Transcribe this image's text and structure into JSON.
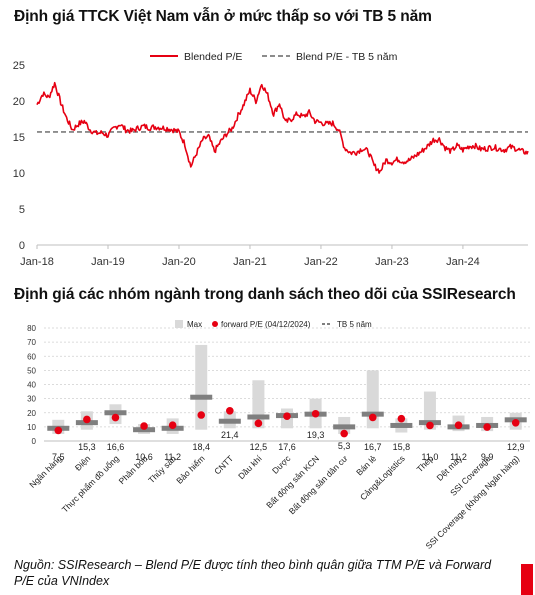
{
  "colors": {
    "accent": "#e60012",
    "avg_line": "#8c8c8c",
    "range_bar": "#d9d9d9",
    "tb_marker": "#7f7f7f"
  },
  "chart_data": [
    {
      "type": "line",
      "title": "Định giá TTCK Việt Nam vẫn ở mức thấp so với TB 5 năm",
      "ylim": [
        0,
        25
      ],
      "yticks": [
        "0",
        "5",
        "10",
        "15",
        "20",
        "25"
      ],
      "xlim": [
        "2018-01",
        "2024-12"
      ],
      "xticks": [
        "Jan-18",
        "Jan-19",
        "Jan-20",
        "Jan-21",
        "Jan-22",
        "Jan-23",
        "Jan-24"
      ],
      "legend_position": "top",
      "series": [
        {
          "name": "Blended P/E",
          "color": "#e60012",
          "x": [
            "2018-01",
            "2018-02",
            "2018-03",
            "2018-04",
            "2018-05",
            "2018-06",
            "2018-07",
            "2018-08",
            "2018-09",
            "2018-10",
            "2018-11",
            "2018-12",
            "2019-01",
            "2019-02",
            "2019-03",
            "2019-04",
            "2019-05",
            "2019-06",
            "2019-07",
            "2019-08",
            "2019-09",
            "2019-10",
            "2019-11",
            "2019-12",
            "2020-01",
            "2020-02",
            "2020-03",
            "2020-04",
            "2020-05",
            "2020-06",
            "2020-07",
            "2020-08",
            "2020-09",
            "2020-10",
            "2020-11",
            "2020-12",
            "2021-01",
            "2021-02",
            "2021-03",
            "2021-04",
            "2021-05",
            "2021-06",
            "2021-07",
            "2021-08",
            "2021-09",
            "2021-10",
            "2021-11",
            "2021-12",
            "2022-01",
            "2022-02",
            "2022-03",
            "2022-04",
            "2022-05",
            "2022-06",
            "2022-07",
            "2022-08",
            "2022-09",
            "2022-10",
            "2022-11",
            "2022-12",
            "2023-01",
            "2023-02",
            "2023-03",
            "2023-04",
            "2023-05",
            "2023-06",
            "2023-07",
            "2023-08",
            "2023-09",
            "2023-10",
            "2023-11",
            "2023-12",
            "2024-01",
            "2024-02",
            "2024-03",
            "2024-04",
            "2024-05",
            "2024-06",
            "2024-07",
            "2024-08",
            "2024-09",
            "2024-10",
            "2024-11",
            "2024-12"
          ],
          "y": [
            19.5,
            21,
            20.5,
            22.5,
            19.8,
            17.6,
            16.0,
            16.8,
            17.2,
            16.0,
            15.5,
            15.6,
            15.2,
            16.2,
            16.8,
            16.0,
            15.8,
            16.2,
            16.5,
            16.3,
            16.4,
            16.3,
            16.2,
            16.0,
            15.7,
            14.0,
            10.9,
            12.8,
            14.6,
            15.1,
            13.0,
            14.3,
            15.4,
            16.2,
            18.0,
            19.6,
            21.5,
            20.0,
            22.4,
            20.8,
            18.2,
            19.7,
            17.0,
            17.5,
            18.2,
            17.8,
            18.4,
            17.2,
            17.0,
            16.8,
            16.9,
            16.0,
            13.5,
            12.8,
            12.9,
            13.4,
            13.0,
            11.0,
            10.2,
            11.8,
            11.5,
            11.9,
            11.6,
            11.8,
            12.4,
            13.0,
            13.7,
            14.6,
            14.7,
            13.5,
            13.0,
            13.8,
            13.2,
            13.7,
            13.8,
            13.3,
            13.4,
            13.6,
            13.4,
            13.2,
            13.6,
            13.4,
            13.0,
            12.8
          ]
        },
        {
          "name": "Blend P/E - TB 5 năm",
          "color": "#8c8c8c",
          "y_constant": 15.7
        }
      ]
    },
    {
      "type": "bar",
      "title": "Định giá các nhóm ngành trong danh sách theo dõi của SSIResearch",
      "ylim": [
        0,
        80
      ],
      "yticks": [
        "0",
        "10",
        "20",
        "30",
        "40",
        "50",
        "60",
        "70",
        "80"
      ],
      "legend": [
        "Max",
        "forward P/E (04/12/2024)",
        "TB 5 năm"
      ],
      "categories": [
        "Ngân hàng",
        "Điện",
        "Thực phẩm đồ uống",
        "Phân bón",
        "Thủy sản",
        "Bảo hiểm",
        "CNTT",
        "Dầu khí",
        "Dược",
        "Bất động sản KCN",
        "Bất động sản dân cư",
        "Bán lẻ",
        "Cảng&Logistics",
        "Thép",
        "Dệt may",
        "SSI Coverage",
        "SSI Coverage (không Ngân hàng)"
      ],
      "data_labels": [
        "7,5",
        "15,3",
        "16,6",
        "10,6",
        "11,2",
        "18,4",
        "21,4",
        "12,5",
        "17,6",
        "19,3",
        "5,3",
        "16,7",
        "15,8",
        "11,0",
        "11,2",
        "9,9",
        "12,9"
      ],
      "series": [
        {
          "name": "Max",
          "values": [
            15,
            21,
            26,
            12,
            16,
            68,
            21,
            43,
            23,
            30,
            17,
            50,
            16,
            35,
            18,
            17,
            20
          ]
        },
        {
          "name": "Min",
          "values": [
            5,
            8,
            12,
            5,
            5,
            8,
            9,
            9,
            9,
            9,
            5,
            9,
            6,
            8,
            7,
            7,
            8
          ]
        },
        {
          "name": "forward P/E (04/12/2024)",
          "values": [
            7.5,
            15.3,
            16.6,
            10.6,
            11.2,
            18.4,
            21.4,
            12.5,
            17.6,
            19.3,
            5.3,
            16.7,
            15.8,
            11.0,
            11.2,
            9.9,
            12.9
          ]
        },
        {
          "name": "TB 5 năm",
          "values": [
            9,
            13,
            20,
            8,
            9,
            31,
            14,
            17,
            18,
            19,
            10,
            19,
            11,
            13,
            10,
            11,
            15
          ]
        }
      ]
    }
  ],
  "source_note": "Nguồn: SSIResearch – Blend P/E được tính theo bình quân giữa TTM P/E và Forward P/E của VNIndex"
}
